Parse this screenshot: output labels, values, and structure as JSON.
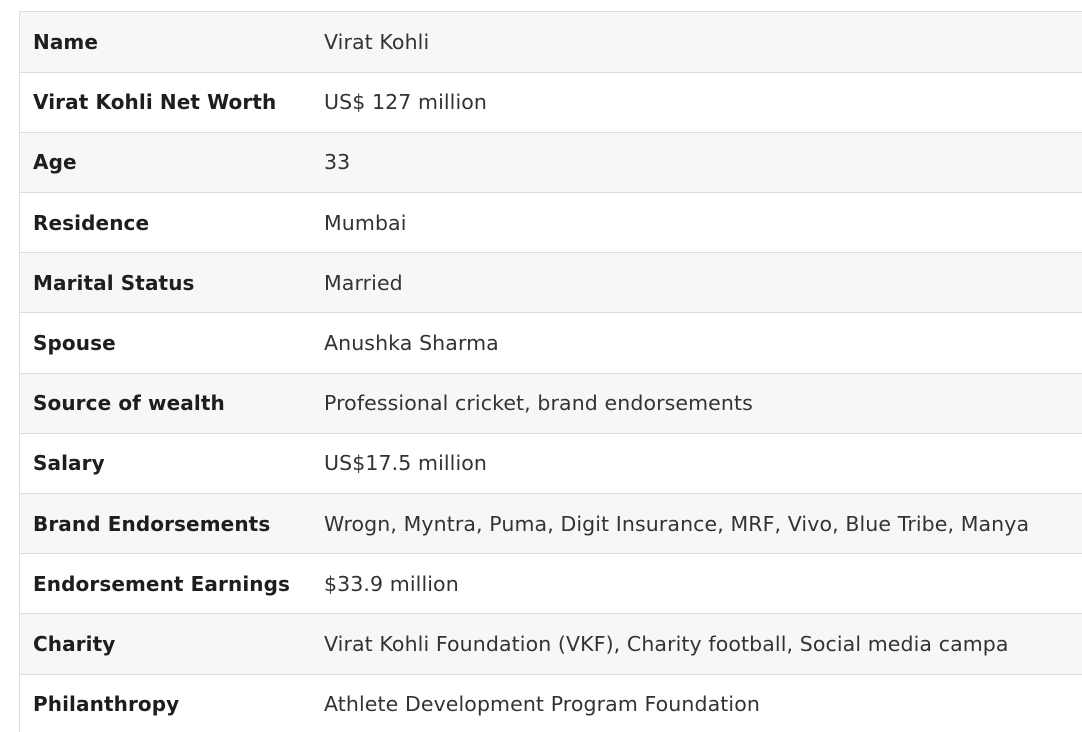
{
  "table": {
    "rows": [
      {
        "label": "Name",
        "value": "Virat Kohli"
      },
      {
        "label": "Virat Kohli Net Worth",
        "value": "US$ 127 million"
      },
      {
        "label": "Age",
        "value": "33"
      },
      {
        "label": "Residence",
        "value": "Mumbai"
      },
      {
        "label": "Marital Status",
        "value": "Married"
      },
      {
        "label": "Spouse",
        "value": "Anushka Sharma"
      },
      {
        "label": "Source of wealth",
        "value": "Professional cricket, brand endorsements"
      },
      {
        "label": "Salary",
        "value": "US$17.5 million"
      },
      {
        "label": "Brand Endorsements",
        "value": "Wrogn, Myntra, Puma, Digit Insurance, MRF, Vivo, Blue Tribe, Manya"
      },
      {
        "label": "Endorsement Earnings",
        "value": "$33.9 million"
      },
      {
        "label": "Charity",
        "value": "Virat Kohli Foundation (VKF), Charity football, Social media campa"
      },
      {
        "label": "Philanthropy",
        "value": "Athlete Development Program Foundation"
      }
    ]
  }
}
